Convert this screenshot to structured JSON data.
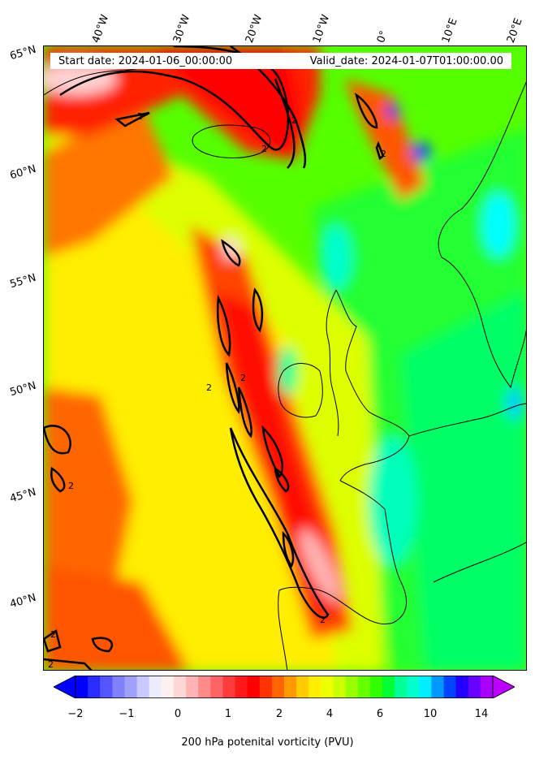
{
  "map": {
    "start_date": "Start date: 2024-01-06_00:00:00",
    "valid_date": "Valid_date: 2024-01-07T01:00:00.00",
    "contour_label": "2",
    "longitude_labels": [
      "40°W",
      "30°W",
      "20°W",
      "10°W",
      "0°",
      "10°E",
      "20°E"
    ],
    "latitude_labels": [
      "65°N",
      "60°N",
      "55°N",
      "50°N",
      "45°N",
      "40°N"
    ]
  },
  "colorbar": {
    "label": "200 hPa potenital vorticity (PVU)",
    "ticks": [
      "−2",
      "−1",
      "0",
      "1",
      "2",
      "4",
      "6",
      "10",
      "14"
    ],
    "colors": [
      "#0000ff",
      "#2b2bff",
      "#5555ff",
      "#7f7fff",
      "#a0a0ff",
      "#c8c8ff",
      "#ececff",
      "#fff0f0",
      "#ffd6d6",
      "#ffb3b3",
      "#ff8a8a",
      "#ff6464",
      "#ff3c3c",
      "#ff1a1a",
      "#ff0000",
      "#ff3300",
      "#ff6600",
      "#ff9900",
      "#ffcc00",
      "#ffee00",
      "#eeff00",
      "#ccff00",
      "#99ff00",
      "#66ff00",
      "#33ff00",
      "#00ff33",
      "#00ff99",
      "#00ffcc",
      "#00eeff",
      "#0099ff",
      "#0044ff",
      "#2200ff",
      "#6600ff",
      "#aa00ff"
    ],
    "arrow_left_color": "#0000ff",
    "arrow_right_color": "#bb00ff"
  }
}
